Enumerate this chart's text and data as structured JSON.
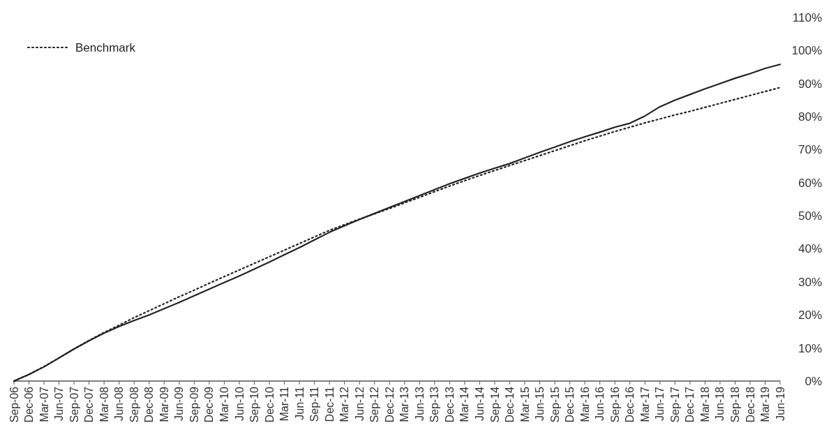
{
  "chart_data": {
    "type": "line",
    "categories": [
      "Sep-06",
      "Dec-06",
      "Mar-07",
      "Jun-07",
      "Sep-07",
      "Dec-07",
      "Mar-08",
      "Jun-08",
      "Sep-08",
      "Dec-08",
      "Mar-09",
      "Jun-09",
      "Sep-09",
      "Dec-09",
      "Mar-10",
      "Jun-10",
      "Sep-10",
      "Dec-10",
      "Mar-11",
      "Jun-11",
      "Sep-11",
      "Dec-11",
      "Mar-12",
      "Jun-12",
      "Sep-12",
      "Dec-12",
      "Mar-13",
      "Jun-13",
      "Sep-13",
      "Dec-13",
      "Mar-14",
      "Jun-14",
      "Sep-14",
      "Dec-14",
      "Mar-15",
      "Jun-15",
      "Sep-15",
      "Dec-15",
      "Mar-16",
      "Jun-16",
      "Sep-16",
      "Dec-16",
      "Mar-17",
      "Jun-17",
      "Sep-17",
      "Dec-17",
      "Mar-18",
      "Jun-18",
      "Sep-18",
      "Dec-18",
      "Mar-19",
      "Jun-19"
    ],
    "series": [
      {
        "color": "#222222",
        "line_style": "solid",
        "values": [
          0,
          2.0,
          4.3,
          7.0,
          9.7,
          12.2,
          14.5,
          16.5,
          18.3,
          20.0,
          21.9,
          23.8,
          25.8,
          27.8,
          29.8,
          31.8,
          33.9,
          36.0,
          38.2,
          40.4,
          42.7,
          45.0,
          47.0,
          48.9,
          50.7,
          52.5,
          54.3,
          56.1,
          57.9,
          59.7,
          61.3,
          62.9,
          64.4,
          65.8,
          67.5,
          69.2,
          70.8,
          72.4,
          73.9,
          75.3,
          76.8,
          78.0,
          80.2,
          83.0,
          85.0,
          86.7,
          88.4,
          90.0,
          91.6,
          93.0,
          94.6,
          95.8
        ]
      },
      {
        "name": "Benchmark",
        "color": "#222222",
        "line_style": "dotted",
        "values": [
          0,
          2.0,
          4.4,
          7.0,
          9.7,
          12.3,
          14.7,
          16.9,
          19.2,
          21.3,
          23.4,
          25.5,
          27.5,
          29.6,
          31.6,
          33.6,
          35.6,
          37.6,
          39.6,
          41.6,
          43.6,
          45.6,
          47.3,
          49.0,
          50.6,
          52.2,
          53.9,
          55.6,
          57.3,
          59.0,
          60.6,
          62.2,
          63.7,
          65.2,
          66.7,
          68.2,
          69.7,
          71.2,
          72.7,
          74.1,
          75.5,
          76.8,
          78.1,
          79.3,
          80.5,
          81.6,
          82.8,
          84.0,
          85.2,
          86.4,
          87.6,
          88.8
        ]
      }
    ],
    "ylim": [
      0,
      110
    ],
    "yticks": [
      {
        "value": 0,
        "label": "0%"
      },
      {
        "value": 10,
        "label": "10%"
      },
      {
        "value": 20,
        "label": "20%"
      },
      {
        "value": 30,
        "label": "30%"
      },
      {
        "value": 40,
        "label": "40%"
      },
      {
        "value": 50,
        "label": "50%"
      },
      {
        "value": 60,
        "label": "60%"
      },
      {
        "value": 70,
        "label": "70%"
      },
      {
        "value": 80,
        "label": "80%"
      },
      {
        "value": 90,
        "label": "90%"
      },
      {
        "value": 100,
        "label": "100%"
      },
      {
        "value": 110,
        "label": "110%"
      }
    ],
    "grid": false,
    "legend": "top left"
  }
}
